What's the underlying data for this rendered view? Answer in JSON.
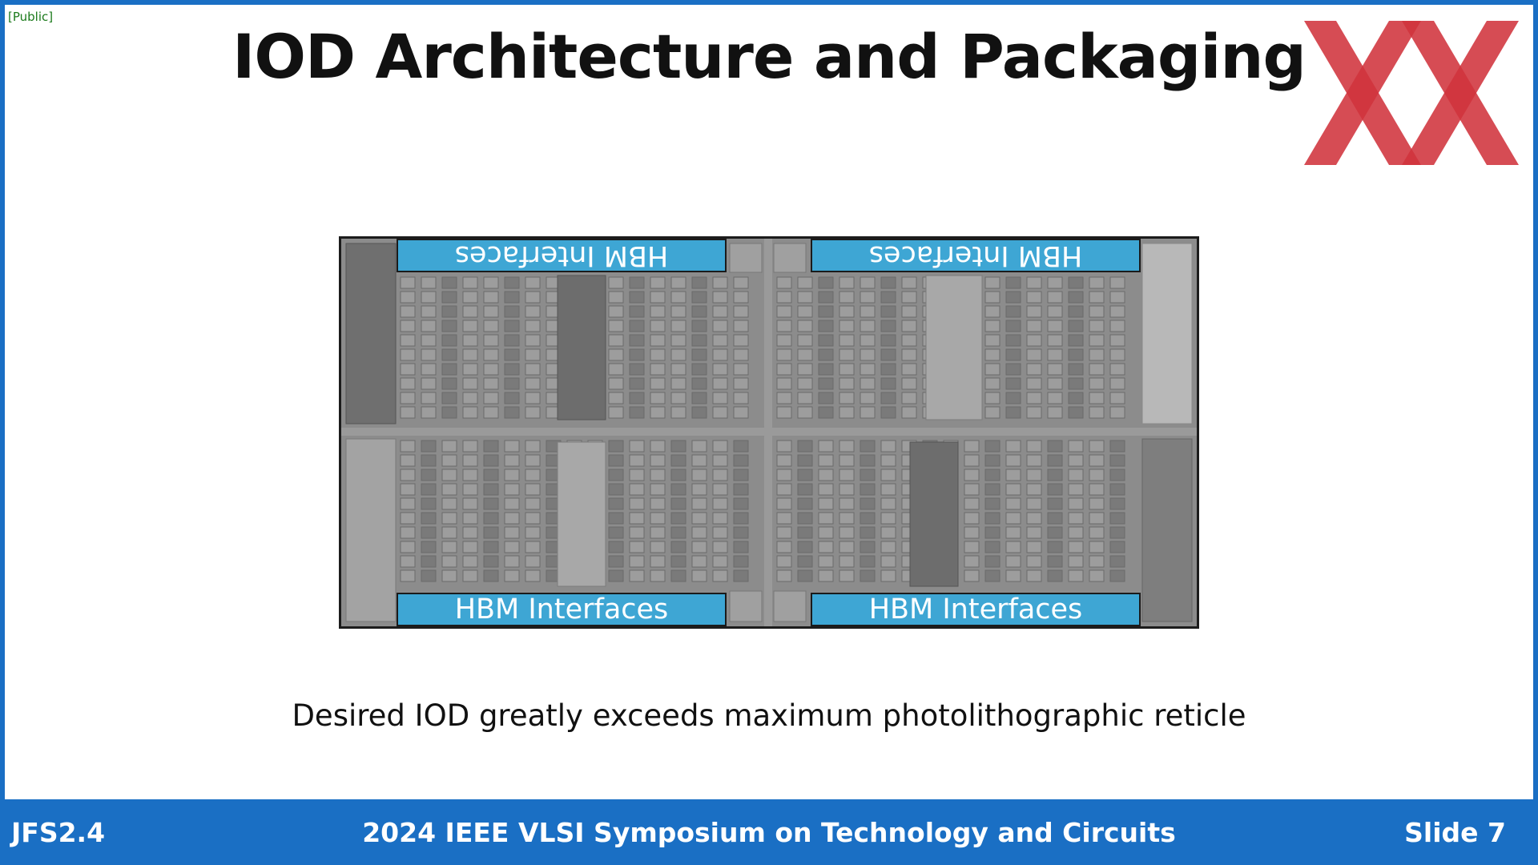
{
  "classification": "[Public]",
  "title": "IOD Architecture and Packaging",
  "logo_icon": "xx-logo-icon",
  "die_image": {
    "hbm_labels": {
      "top_left": "HBM Interfaces",
      "top_right": "HBM Interfaces",
      "bottom_left": "HBM Interfaces",
      "bottom_right": "HBM Interfaces"
    }
  },
  "caption": "Desired IOD greatly exceeds maximum photolithographic reticle",
  "footer": {
    "session": "JFS2.4",
    "conference": "2024 IEEE VLSI Symposium on Technology and Circuits",
    "slide": "Slide 7"
  },
  "colors": {
    "accent_blue": "#1a6fc4",
    "hbm_blue": "#3ea6d4",
    "logo_red": "#d0333c"
  }
}
